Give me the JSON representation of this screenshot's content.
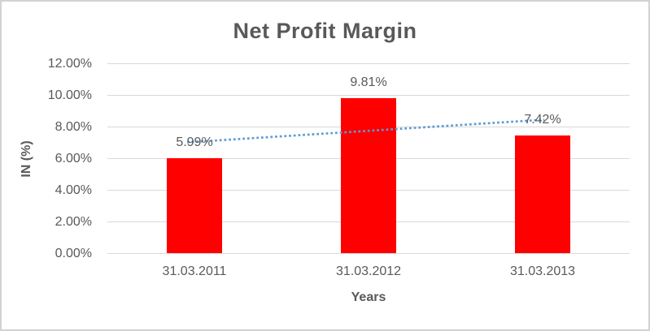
{
  "chart_data": {
    "type": "bar",
    "title": "Net Profit Margin",
    "xlabel": "Years",
    "ylabel": "IN (%)",
    "ylim": [
      0,
      12
    ],
    "grid": true,
    "legend": false,
    "categories": [
      "31.03.2011",
      "31.03.2012",
      "31.03.2013"
    ],
    "series": [
      {
        "name": "Net Profit Margin",
        "values": [
          5.99,
          9.81,
          7.42
        ],
        "data_labels": [
          "5.99%",
          "9.81%",
          "7.42%"
        ],
        "color": "#ff0000"
      }
    ],
    "yticks": [
      {
        "value": 0,
        "label": "0.00%"
      },
      {
        "value": 2,
        "label": "2.00%"
      },
      {
        "value": 4,
        "label": "4.00%"
      },
      {
        "value": 6,
        "label": "6.00%"
      },
      {
        "value": 8,
        "label": "8.00%"
      },
      {
        "value": 10,
        "label": "10.00%"
      },
      {
        "value": 12,
        "label": "12.00%"
      }
    ],
    "trendline": {
      "type": "linear",
      "style": "dotted",
      "color": "#5b9bd5",
      "start_value": 7.03,
      "end_value": 8.46
    },
    "colors": {
      "bar": "#ff0000",
      "text": "#595959",
      "gridline": "#d9d9d9",
      "trendline": "#5b9bd5",
      "border": "#d2d2d2"
    }
  }
}
